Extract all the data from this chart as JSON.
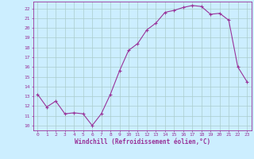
{
  "x": [
    0,
    1,
    2,
    3,
    4,
    5,
    6,
    7,
    8,
    9,
    10,
    11,
    12,
    13,
    14,
    15,
    16,
    17,
    18,
    19,
    20,
    21,
    22,
    23
  ],
  "y": [
    13.2,
    11.9,
    12.5,
    11.2,
    11.3,
    11.2,
    10.0,
    11.2,
    13.2,
    15.6,
    17.7,
    18.4,
    19.8,
    20.5,
    21.6,
    21.8,
    22.1,
    22.3,
    22.2,
    21.4,
    21.5,
    20.8,
    16.0,
    14.5
  ],
  "xlabel": "Windchill (Refroidissement éolien,°C)",
  "xlim": [
    -0.5,
    23.5
  ],
  "ylim": [
    9.5,
    22.7
  ],
  "yticks": [
    10,
    11,
    12,
    13,
    14,
    15,
    16,
    17,
    18,
    19,
    20,
    21,
    22
  ],
  "xticks": [
    0,
    1,
    2,
    3,
    4,
    5,
    6,
    7,
    8,
    9,
    10,
    11,
    12,
    13,
    14,
    15,
    16,
    17,
    18,
    19,
    20,
    21,
    22,
    23
  ],
  "line_color": "#993399",
  "marker_color": "#993399",
  "bg_color": "#cceeff",
  "grid_color": "#aacccc",
  "tick_color": "#993399",
  "label_color": "#993399"
}
